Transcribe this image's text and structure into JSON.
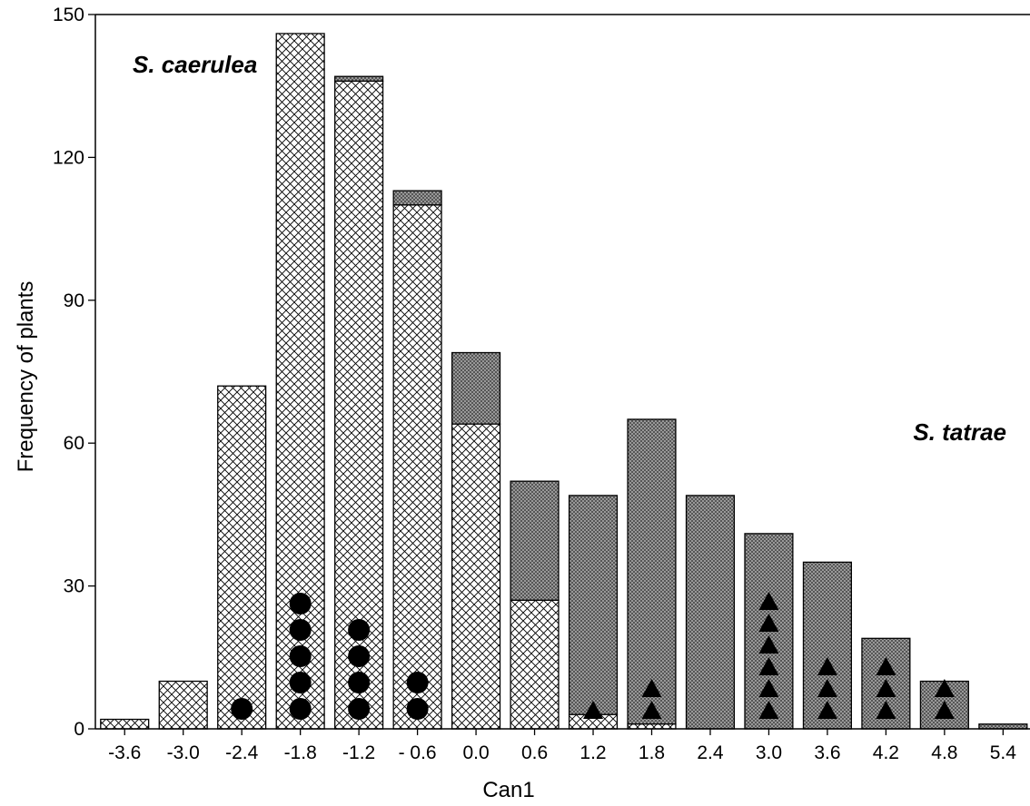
{
  "chart_data": {
    "type": "bar",
    "stacked": true,
    "grid": false,
    "title": "",
    "xlabel": "Can1",
    "ylabel": "Frequency of plants",
    "ylim": [
      0,
      150
    ],
    "yticks": [
      "0",
      "30",
      "60",
      "90",
      "120",
      "150"
    ],
    "categories": [
      "-3.6",
      "-3.0",
      "-2.4",
      "-1.8",
      "-1.2",
      "- 0.6",
      "0.0",
      "0.6",
      "1.2",
      "1.8",
      "2.4",
      "3.0",
      "3.6",
      "4.2",
      "4.8",
      "5.4"
    ],
    "series": [
      {
        "name": "S. caerulea",
        "pattern": "crosshatch",
        "values": [
          2,
          10,
          72,
          146,
          136,
          110,
          64,
          27,
          3,
          1,
          0,
          0,
          0,
          0,
          0,
          0
        ]
      },
      {
        "name": "S. tatrae",
        "pattern": "fine-dots",
        "values": [
          0,
          0,
          0,
          0,
          1,
          3,
          15,
          25,
          46,
          64,
          49,
          41,
          35,
          19,
          10,
          1
        ]
      }
    ],
    "markers": {
      "circles": [
        0,
        0,
        1,
        5,
        4,
        2,
        0,
        0,
        0,
        0,
        0,
        0,
        0,
        0,
        0,
        0
      ],
      "triangles": [
        0,
        0,
        0,
        0,
        0,
        0,
        0,
        0,
        1,
        2,
        0,
        6,
        3,
        3,
        2,
        0
      ]
    },
    "annotations": [
      "S. caerulea",
      "S. tatrae"
    ],
    "colors": {
      "bar_border": "#000000",
      "marker": "#000000"
    }
  }
}
